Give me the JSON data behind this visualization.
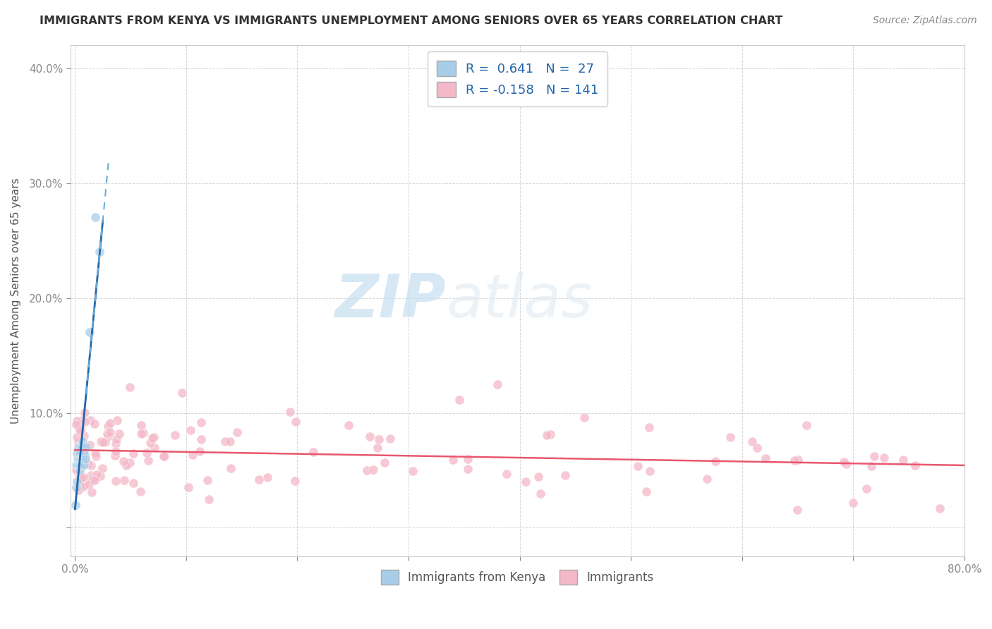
{
  "title": "IMMIGRANTS FROM KENYA VS IMMIGRANTS UNEMPLOYMENT AMONG SENIORS OVER 65 YEARS CORRELATION CHART",
  "source": "Source: ZipAtlas.com",
  "ylabel": "Unemployment Among Seniors over 65 years",
  "xlim": [
    -0.004,
    0.8
  ],
  "ylim": [
    -0.025,
    0.42
  ],
  "r1": 0.641,
  "n1": 27,
  "r2": -0.158,
  "n2": 141,
  "blue_color": "#a8cde8",
  "pink_color": "#f4b8c8",
  "blue_line_color": "#2166ac",
  "pink_line_color": "#e8566e",
  "background_color": "#ffffff",
  "watermark_zip": "ZIP",
  "watermark_atlas": "atlas",
  "title_fontsize": 11.5,
  "source_fontsize": 10,
  "tick_fontsize": 11,
  "ylabel_fontsize": 11
}
